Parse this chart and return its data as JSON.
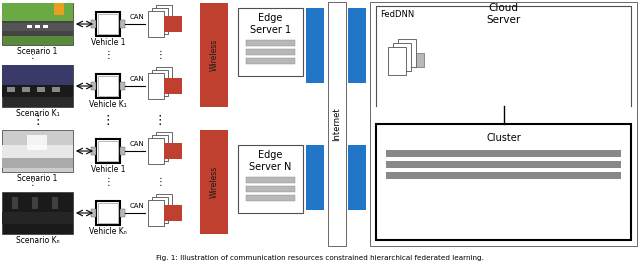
{
  "fig_width": 6.4,
  "fig_height": 2.68,
  "dpi": 100,
  "bg_color": "#ffffff",
  "blue_color": "#2176C8",
  "red_color": "#C04030",
  "light_gray": "#B8B8B8",
  "dark_gray": "#505050",
  "med_gray": "#888888",
  "caption": "Fig. 1: Illustration of communication resources constrained hierarchical federated learning.",
  "edge_server1_label": "Edge\nServer 1",
  "edge_serverN_label": "Edge\nServer N",
  "wireless_label": "Wireless",
  "internet_label": "Internet",
  "cloud_label": "Cloud\nServer",
  "feddnn_label": "FedDNN",
  "cluster_label": "Cluster",
  "can_label": "CAN",
  "scenario1_label": "Scenario 1",
  "scenarioK1_label": "Scenario K₁",
  "scenario1b_label": "Scenario 1",
  "scenarioKN_label": "Scenario Kₙ",
  "vehicle1_label": "Vehicle 1",
  "vehicleK1_label": "Vehicle K₁",
  "vehicle1b_label": "Vehicle 1",
  "vehicleKN_label": "Vehicle Kₙ"
}
